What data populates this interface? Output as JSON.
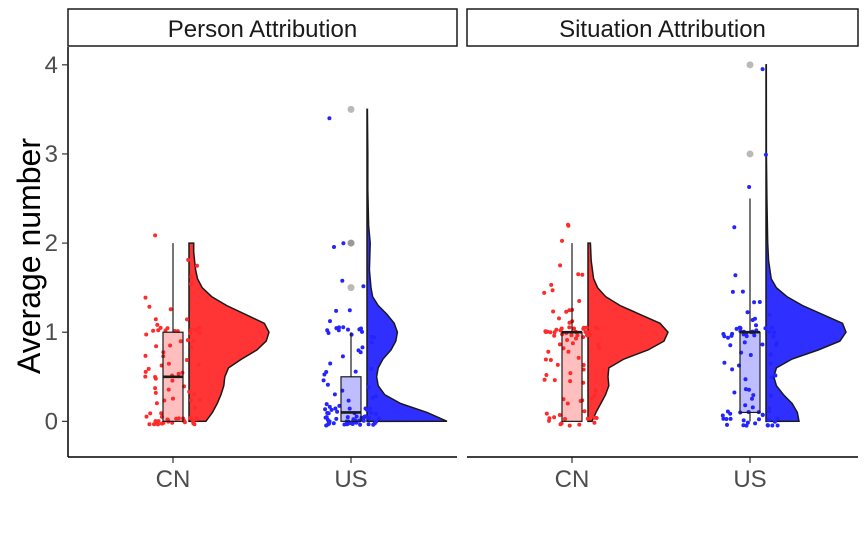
{
  "chart_data": {
    "type": "raincloud",
    "ylabel": "Average number",
    "xlabel": "",
    "ylim": [
      -0.4,
      4.2
    ],
    "y_ticks": [
      0,
      1,
      2,
      3,
      4
    ],
    "categories": [
      "CN",
      "US"
    ],
    "grid": false,
    "colors": {
      "CN": "#ff2a2a",
      "US": "#2424ff"
    },
    "panels": [
      {
        "title": "Person Attribution",
        "groups": [
          {
            "category": "CN",
            "box": {
              "q1": 0.0,
              "median": 0.5,
              "q3": 1.0,
              "whisker_low": 0.0,
              "whisker_high": 2.0
            },
            "outliers": [],
            "density": [
              [
                0,
                0.18
              ],
              [
                0.1,
                0.25
              ],
              [
                0.2,
                0.3
              ],
              [
                0.3,
                0.34
              ],
              [
                0.4,
                0.37
              ],
              [
                0.5,
                0.38
              ],
              [
                0.6,
                0.42
              ],
              [
                0.7,
                0.56
              ],
              [
                0.8,
                0.72
              ],
              [
                0.9,
                0.82
              ],
              [
                1.0,
                0.85
              ],
              [
                1.1,
                0.8
              ],
              [
                1.2,
                0.6
              ],
              [
                1.3,
                0.4
              ],
              [
                1.4,
                0.24
              ],
              [
                1.5,
                0.14
              ],
              [
                1.6,
                0.09
              ],
              [
                1.7,
                0.07
              ],
              [
                1.8,
                0.06
              ],
              [
                1.9,
                0.05
              ],
              [
                2.0,
                0.05
              ]
            ],
            "points": [
              0,
              0,
              0,
              0,
              0,
              0,
              0,
              0,
              0,
              0,
              0,
              0,
              0,
              0,
              0,
              0,
              0,
              0,
              0,
              0,
              0,
              0,
              0,
              0,
              0,
              0,
              0,
              0.1,
              0.1,
              0.1,
              0.2,
              0.2,
              0.2,
              0.25,
              0.3,
              0.3,
              0.3,
              0.35,
              0.4,
              0.4,
              0.4,
              0.45,
              0.5,
              0.5,
              0.5,
              0.5,
              0.5,
              0.5,
              0.5,
              0.6,
              0.6,
              0.65,
              0.7,
              0.7,
              0.7,
              0.75,
              0.8,
              0.8,
              0.8,
              0.85,
              0.9,
              0.9,
              0.9,
              1,
              1,
              1,
              1,
              1,
              1,
              1,
              1,
              1,
              1,
              1,
              1,
              1,
              1,
              1.1,
              1.2,
              1.2,
              1.25,
              1.3,
              1.4,
              1.5,
              1.6,
              1.75,
              1.85,
              2.1
            ]
          },
          {
            "category": "US",
            "box": {
              "q1": 0.0,
              "median": 0.1,
              "q3": 0.5,
              "whisker_low": 0.0,
              "whisker_high": 1.0
            },
            "outliers": [
              1.5,
              2.0,
              2.0,
              3.5
            ],
            "density": [
              [
                0,
                1.0
              ],
              [
                0.1,
                0.75
              ],
              [
                0.2,
                0.42
              ],
              [
                0.3,
                0.22
              ],
              [
                0.4,
                0.14
              ],
              [
                0.5,
                0.12
              ],
              [
                0.6,
                0.14
              ],
              [
                0.7,
                0.2
              ],
              [
                0.8,
                0.3
              ],
              [
                0.9,
                0.36
              ],
              [
                1.0,
                0.38
              ],
              [
                1.1,
                0.34
              ],
              [
                1.2,
                0.25
              ],
              [
                1.3,
                0.14
              ],
              [
                1.4,
                0.07
              ],
              [
                1.5,
                0.05
              ],
              [
                1.7,
                0.03
              ],
              [
                2.0,
                0.04
              ],
              [
                2.2,
                0.02
              ],
              [
                2.6,
                0.01
              ],
              [
                3.0,
                0.01
              ],
              [
                3.5,
                0.005
              ]
            ],
            "points": [
              0,
              0,
              0,
              0,
              0,
              0,
              0,
              0,
              0,
              0,
              0,
              0,
              0,
              0,
              0,
              0,
              0,
              0,
              0,
              0,
              0,
              0,
              0,
              0,
              0,
              0,
              0,
              0,
              0,
              0,
              0,
              0,
              0,
              0,
              0,
              0,
              0,
              0.1,
              0.1,
              0.1,
              0.1,
              0.1,
              0.1,
              0.1,
              0.1,
              0.1,
              0.1,
              0.1,
              0.1,
              0.15,
              0.2,
              0.2,
              0.2,
              0.2,
              0.2,
              0.25,
              0.3,
              0.3,
              0.3,
              0.4,
              0.4,
              0.5,
              0.5,
              0.5,
              0.6,
              0.6,
              0.7,
              0.7,
              0.8,
              0.8,
              0.8,
              0.9,
              0.9,
              0.9,
              1,
              1,
              1,
              1,
              1,
              1,
              1,
              1,
              1,
              1,
              1,
              1.1,
              1.2,
              1.25,
              1.5,
              1.55,
              1.95,
              2.0,
              3.45
            ]
          }
        ]
      },
      {
        "title": "Situation Attribution",
        "groups": [
          {
            "category": "CN",
            "box": {
              "q1": 0.0,
              "median": 1.0,
              "q3": 1.0,
              "whisker_low": 0.0,
              "whisker_high": 2.0
            },
            "outliers": [],
            "density": [
              [
                0,
                0.05
              ],
              [
                0.1,
                0.1
              ],
              [
                0.2,
                0.16
              ],
              [
                0.3,
                0.22
              ],
              [
                0.4,
                0.26
              ],
              [
                0.5,
                0.25
              ],
              [
                0.6,
                0.26
              ],
              [
                0.7,
                0.45
              ],
              [
                0.8,
                0.75
              ],
              [
                0.9,
                0.95
              ],
              [
                1.0,
                1.0
              ],
              [
                1.1,
                0.9
              ],
              [
                1.2,
                0.65
              ],
              [
                1.3,
                0.4
              ],
              [
                1.4,
                0.22
              ],
              [
                1.5,
                0.12
              ],
              [
                1.6,
                0.07
              ],
              [
                1.8,
                0.04
              ],
              [
                2.0,
                0.03
              ]
            ],
            "points": [
              0,
              0,
              0,
              0,
              0,
              0,
              0,
              0,
              0,
              0,
              0,
              0,
              0.1,
              0.1,
              0.1,
              0.2,
              0.2,
              0.2,
              0.3,
              0.3,
              0.3,
              0.4,
              0.4,
              0.4,
              0.5,
              0.5,
              0.5,
              0.5,
              0.6,
              0.6,
              0.6,
              0.7,
              0.7,
              0.7,
              0.8,
              0.8,
              0.8,
              0.8,
              0.9,
              0.9,
              0.9,
              0.9,
              0.9,
              0.9,
              1,
              1,
              1,
              1,
              1,
              1,
              1,
              1,
              1,
              1,
              1,
              1,
              1,
              1,
              1,
              1,
              1,
              1,
              1,
              1,
              1,
              1,
              1,
              1,
              1,
              1,
              1,
              1.05,
              1.1,
              1.1,
              1.1,
              1.2,
              1.2,
              1.2,
              1.3,
              1.3,
              1.4,
              1.5,
              1.5,
              1.6,
              1.7,
              1.8,
              2.0,
              2.15,
              2.2
            ]
          },
          {
            "category": "US",
            "box": {
              "q1": 0.1,
              "median": 1.0,
              "q3": 1.0,
              "whisker_low": 0.0,
              "whisker_high": 2.5
            },
            "outliers": [
              3.0,
              4.0
            ],
            "density": [
              [
                0,
                0.38
              ],
              [
                0.1,
                0.36
              ],
              [
                0.2,
                0.3
              ],
              [
                0.3,
                0.2
              ],
              [
                0.4,
                0.12
              ],
              [
                0.5,
                0.09
              ],
              [
                0.6,
                0.12
              ],
              [
                0.7,
                0.3
              ],
              [
                0.8,
                0.6
              ],
              [
                0.9,
                0.85
              ],
              [
                1.0,
                0.92
              ],
              [
                1.1,
                0.88
              ],
              [
                1.2,
                0.65
              ],
              [
                1.3,
                0.42
              ],
              [
                1.4,
                0.24
              ],
              [
                1.5,
                0.12
              ],
              [
                1.6,
                0.06
              ],
              [
                1.8,
                0.03
              ],
              [
                2.0,
                0.02
              ],
              [
                2.5,
                0.01
              ],
              [
                3.0,
                0.005
              ],
              [
                4.0,
                0.003
              ]
            ],
            "points": [
              0,
              0,
              0,
              0,
              0,
              0,
              0,
              0,
              0,
              0,
              0,
              0,
              0,
              0,
              0,
              0,
              0,
              0,
              0.1,
              0.1,
              0.1,
              0.1,
              0.1,
              0.1,
              0.1,
              0.1,
              0.1,
              0.2,
              0.2,
              0.2,
              0.2,
              0.3,
              0.3,
              0.3,
              0.4,
              0.4,
              0.5,
              0.5,
              0.5,
              0.6,
              0.6,
              0.6,
              0.7,
              0.7,
              0.8,
              0.8,
              0.8,
              0.9,
              0.9,
              0.9,
              0.9,
              0.9,
              1,
              1,
              1,
              1,
              1,
              1,
              1,
              1,
              1,
              1,
              1,
              1,
              1,
              1,
              1,
              1,
              1,
              1,
              1,
              1,
              1,
              1.05,
              1.1,
              1.1,
              1.1,
              1.2,
              1.2,
              1.3,
              1.3,
              1.4,
              1.5,
              1.6,
              2.2,
              2.65,
              3.0,
              4.0
            ]
          }
        ]
      }
    ]
  }
}
